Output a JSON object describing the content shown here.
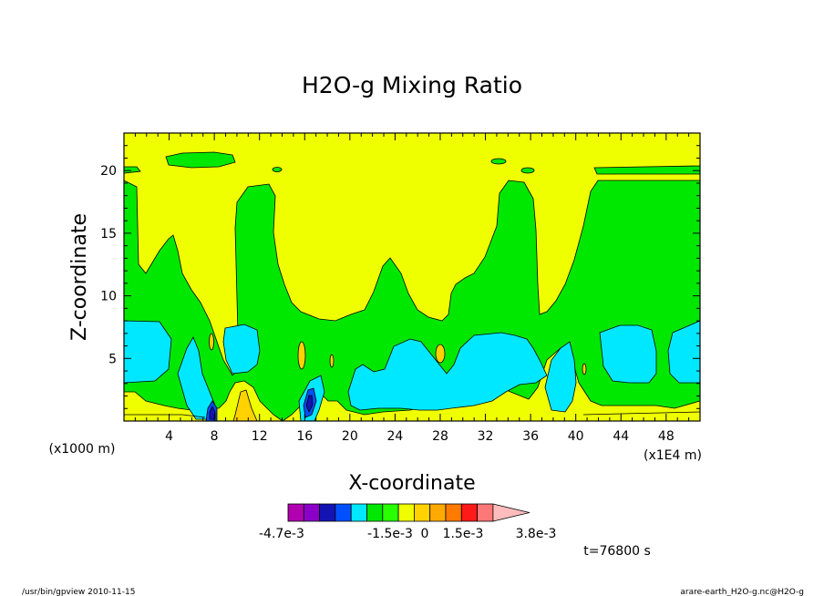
{
  "chart_data": {
    "type": "heatmap",
    "title": "H2O-g Mixing Ratio",
    "xlabel": "X-coordinate",
    "ylabel": "Z-coordinate",
    "x_unit_left": "(x1000 m)",
    "x_unit_right": "(x1E4 m)",
    "xlim": [
      0,
      51
    ],
    "ylim": [
      0,
      23
    ],
    "x_ticks": [
      "4",
      "8",
      "12",
      "16",
      "20",
      "24",
      "28",
      "32",
      "36",
      "40",
      "44",
      "48"
    ],
    "y_ticks": [
      "5",
      "10",
      "15",
      "20"
    ],
    "colorbar_labels": [
      "-4.7e-3",
      "-1.5e-3",
      "0",
      "1.5e-3",
      "3.8e-3"
    ],
    "colorbar_colors": [
      "#b000b0",
      "#8a00c8",
      "#1414b4",
      "#0050ff",
      "#00e8ff",
      "#00e800",
      "#28ff00",
      "#f0ff00",
      "#ffd200",
      "#ffaa00",
      "#ff7a00",
      "#ff1a1a",
      "#ff7878",
      "#ffbcbc"
    ],
    "contour_colors": {
      "background": "#f0ff00",
      "green": "#00e800",
      "cyan": "#00e8ff",
      "blue": "#0050ff",
      "navy": "#1414b4",
      "orange": "#ffd200"
    },
    "time_label": "t=76800 s"
  },
  "footer": {
    "left": "/usr/bin/gpview   2010-11-15",
    "right": "arare-earth_H2O-g.nc@H2O-g"
  }
}
